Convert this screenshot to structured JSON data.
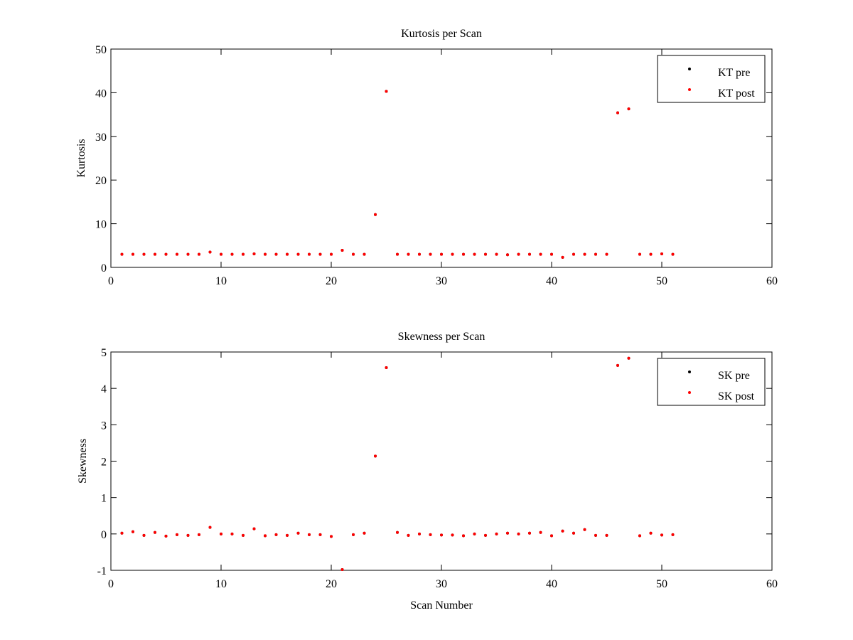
{
  "colors": {
    "pre": "#000000",
    "post": "#ff0000",
    "axes": "#000000",
    "background": "#ffffff"
  },
  "chart_data": [
    {
      "type": "scatter",
      "title": "Kurtosis per Scan",
      "xlabel": "",
      "ylabel": "Kurtosis",
      "xlim": [
        0,
        60
      ],
      "ylim": [
        0,
        50
      ],
      "xticks": [
        0,
        10,
        20,
        30,
        40,
        50,
        60
      ],
      "yticks": [
        0,
        10,
        20,
        30,
        40,
        50
      ],
      "grid": false,
      "legend_position": "top-right",
      "legend": [
        "KT pre",
        "KT post"
      ],
      "series": [
        {
          "name": "KT pre",
          "color": "#000000",
          "x": [
            1,
            2,
            3,
            4,
            5,
            6,
            7,
            8,
            9,
            10,
            11,
            12,
            13,
            14,
            15,
            16,
            17,
            18,
            19,
            20,
            21,
            22,
            23,
            24,
            25,
            26,
            27,
            28,
            29,
            30,
            31,
            32,
            33,
            34,
            35,
            36,
            37,
            38,
            39,
            40,
            41,
            42,
            43,
            44,
            45,
            46,
            47,
            48,
            49,
            50,
            51
          ],
          "y": [
            3.0,
            3.0,
            3.0,
            3.0,
            3.0,
            3.0,
            3.0,
            3.0,
            3.5,
            3.0,
            3.0,
            3.0,
            3.1,
            3.0,
            3.0,
            3.0,
            3.0,
            3.0,
            3.0,
            3.0,
            3.9,
            3.0,
            3.0,
            12.1,
            40.3,
            3.0,
            3.0,
            3.0,
            3.0,
            3.0,
            3.0,
            3.0,
            3.0,
            3.0,
            3.0,
            2.9,
            3.0,
            3.0,
            3.0,
            3.0,
            2.3,
            3.0,
            3.0,
            3.0,
            3.0,
            35.4,
            36.3,
            3.0,
            3.0,
            3.1,
            3.0
          ]
        },
        {
          "name": "KT post",
          "color": "#ff0000",
          "x": [
            1,
            2,
            3,
            4,
            5,
            6,
            7,
            8,
            9,
            10,
            11,
            12,
            13,
            14,
            15,
            16,
            17,
            18,
            19,
            20,
            21,
            22,
            23,
            24,
            25,
            26,
            27,
            28,
            29,
            30,
            31,
            32,
            33,
            34,
            35,
            36,
            37,
            38,
            39,
            40,
            41,
            42,
            43,
            44,
            45,
            46,
            47,
            48,
            49,
            50,
            51
          ],
          "y": [
            3.0,
            3.0,
            3.0,
            3.0,
            3.0,
            3.0,
            3.0,
            3.0,
            3.5,
            3.0,
            3.0,
            3.0,
            3.1,
            3.0,
            3.0,
            3.0,
            3.0,
            3.0,
            3.0,
            3.0,
            3.9,
            3.0,
            3.0,
            12.1,
            40.3,
            3.0,
            3.0,
            3.0,
            3.0,
            3.0,
            3.0,
            3.0,
            3.0,
            3.0,
            3.0,
            2.9,
            3.0,
            3.0,
            3.0,
            3.0,
            2.3,
            3.0,
            3.0,
            3.0,
            3.0,
            35.4,
            36.3,
            3.0,
            3.0,
            3.1,
            3.0
          ]
        }
      ]
    },
    {
      "type": "scatter",
      "title": "Skewness per Scan",
      "xlabel": "Scan Number",
      "ylabel": "Skewness",
      "xlim": [
        0,
        60
      ],
      "ylim": [
        -1,
        5
      ],
      "xticks": [
        0,
        10,
        20,
        30,
        40,
        50,
        60
      ],
      "yticks": [
        -1,
        0,
        1,
        2,
        3,
        4,
        5
      ],
      "grid": false,
      "legend_position": "top-right",
      "legend": [
        "SK pre",
        "SK post"
      ],
      "series": [
        {
          "name": "SK pre",
          "color": "#000000",
          "x": [
            1,
            2,
            3,
            4,
            5,
            6,
            7,
            8,
            9,
            10,
            11,
            12,
            13,
            14,
            15,
            16,
            17,
            18,
            19,
            20,
            21,
            22,
            23,
            24,
            25,
            26,
            27,
            28,
            29,
            30,
            31,
            32,
            33,
            34,
            35,
            36,
            37,
            38,
            39,
            40,
            41,
            42,
            43,
            44,
            45,
            46,
            47,
            48,
            49,
            50,
            51
          ],
          "y": [
            0.02,
            0.06,
            -0.04,
            0.04,
            -0.06,
            -0.02,
            -0.04,
            -0.02,
            0.18,
            0.0,
            0.0,
            -0.04,
            0.14,
            -0.05,
            -0.02,
            -0.04,
            0.02,
            -0.02,
            -0.02,
            -0.07,
            -0.98,
            -0.02,
            0.02,
            2.14,
            4.57,
            0.04,
            -0.04,
            0.0,
            -0.02,
            -0.03,
            -0.03,
            -0.05,
            0.0,
            -0.04,
            0.0,
            0.02,
            0.0,
            0.02,
            0.04,
            -0.05,
            0.08,
            0.02,
            0.12,
            -0.04,
            -0.04,
            4.63,
            4.83,
            -0.05,
            0.02,
            -0.03,
            -0.02
          ]
        },
        {
          "name": "SK post",
          "color": "#ff0000",
          "x": [
            1,
            2,
            3,
            4,
            5,
            6,
            7,
            8,
            9,
            10,
            11,
            12,
            13,
            14,
            15,
            16,
            17,
            18,
            19,
            20,
            21,
            22,
            23,
            24,
            25,
            26,
            27,
            28,
            29,
            30,
            31,
            32,
            33,
            34,
            35,
            36,
            37,
            38,
            39,
            40,
            41,
            42,
            43,
            44,
            45,
            46,
            47,
            48,
            49,
            50,
            51
          ],
          "y": [
            0.02,
            0.06,
            -0.04,
            0.04,
            -0.06,
            -0.02,
            -0.04,
            -0.02,
            0.18,
            0.0,
            0.0,
            -0.04,
            0.14,
            -0.05,
            -0.02,
            -0.04,
            0.02,
            -0.02,
            -0.02,
            -0.07,
            -0.98,
            -0.02,
            0.02,
            2.14,
            4.57,
            0.04,
            -0.04,
            0.0,
            -0.02,
            -0.03,
            -0.03,
            -0.05,
            0.0,
            -0.04,
            0.0,
            0.02,
            0.0,
            0.02,
            0.04,
            -0.05,
            0.08,
            0.02,
            0.12,
            -0.04,
            -0.04,
            4.63,
            4.83,
            -0.05,
            0.02,
            -0.03,
            -0.02
          ]
        }
      ]
    }
  ]
}
